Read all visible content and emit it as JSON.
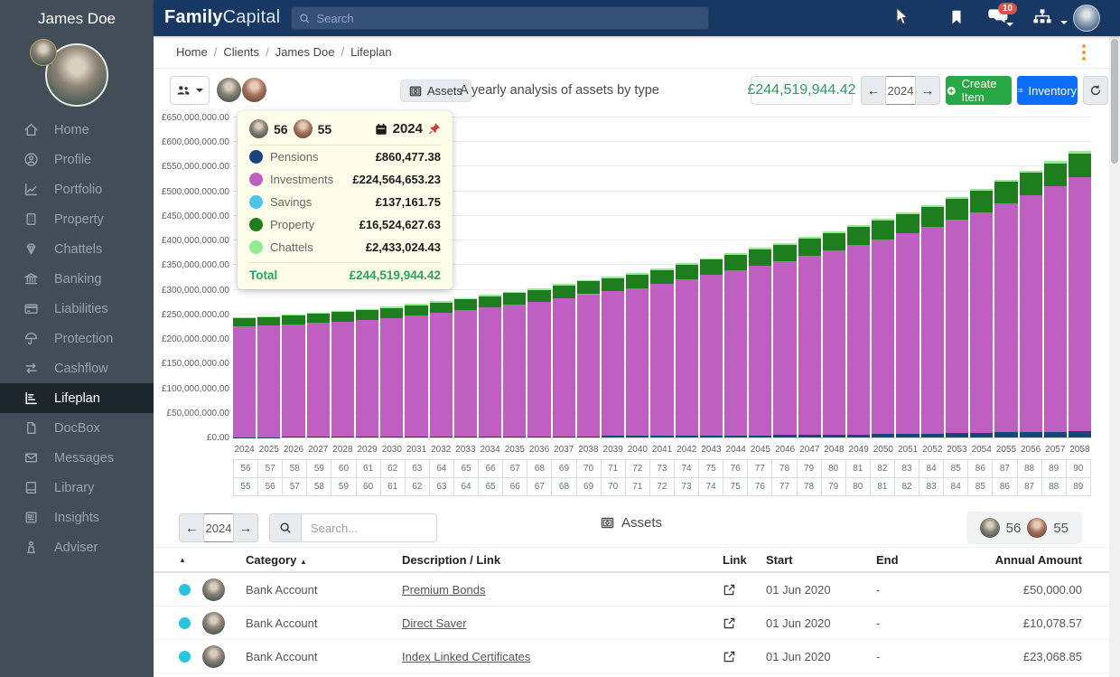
{
  "app": {
    "brand_bold": "Family",
    "brand_rest": "Capital",
    "client_name": "James Doe"
  },
  "navbar": {
    "search_placeholder": "Search",
    "notification_count": "10"
  },
  "breadcrumb": {
    "items": [
      "Home",
      "Clients",
      "James Doe",
      "Lifeplan"
    ]
  },
  "sidebar": {
    "items": [
      {
        "label": "Home"
      },
      {
        "label": "Profile"
      },
      {
        "label": "Portfolio"
      },
      {
        "label": "Property"
      },
      {
        "label": "Chattels"
      },
      {
        "label": "Banking"
      },
      {
        "label": "Liabilities"
      },
      {
        "label": "Protection"
      },
      {
        "label": "Cashflow"
      },
      {
        "label": "Lifeplan",
        "active": true
      },
      {
        "label": "DocBox"
      },
      {
        "label": "Messages"
      },
      {
        "label": "Library"
      },
      {
        "label": "Insights"
      },
      {
        "label": "Adviser"
      }
    ]
  },
  "toolbar": {
    "assets_label": "Assets",
    "subtitle": "A yearly analysis of assets by type",
    "total": "£244,519,944.42",
    "year": "2024",
    "create_label": "Create Item",
    "inventory_label": "Inventory"
  },
  "tooltip": {
    "age_primary": "56",
    "age_secondary": "55",
    "year": "2024",
    "rows": [
      {
        "label": "Pensions",
        "value": "£860,477.38"
      },
      {
        "label": "Investments",
        "value": "£224,564,653.23"
      },
      {
        "label": "Savings",
        "value": "£137,161.75"
      },
      {
        "label": "Property",
        "value": "£16,524,627.63"
      },
      {
        "label": "Chattels",
        "value": "£2,433,024.43"
      }
    ],
    "total_label": "Total",
    "total_value": "£244,519,944.42"
  },
  "chart_data": {
    "type": "bar",
    "stacked": true,
    "title": "A yearly analysis of assets by type",
    "unit": "GBP millions",
    "x": [
      2024,
      2025,
      2026,
      2027,
      2028,
      2029,
      2030,
      2031,
      2032,
      2033,
      2034,
      2035,
      2036,
      2037,
      2038,
      2039,
      2040,
      2041,
      2042,
      2043,
      2044,
      2045,
      2046,
      2047,
      2048,
      2049,
      2050,
      2051,
      2052,
      2053,
      2054,
      2055,
      2056,
      2057,
      2058
    ],
    "ages_primary": [
      56,
      57,
      58,
      59,
      60,
      61,
      62,
      63,
      64,
      65,
      66,
      67,
      68,
      69,
      70,
      71,
      72,
      73,
      74,
      75,
      76,
      77,
      78,
      79,
      80,
      81,
      82,
      83,
      84,
      85,
      86,
      87,
      88,
      89,
      90
    ],
    "ages_secondary": [
      55,
      56,
      57,
      58,
      59,
      60,
      61,
      62,
      63,
      64,
      65,
      66,
      67,
      68,
      69,
      70,
      71,
      72,
      73,
      74,
      75,
      76,
      77,
      78,
      79,
      80,
      81,
      82,
      83,
      84,
      85,
      86,
      87,
      88,
      89
    ],
    "ylim_millions": [
      0,
      650
    ],
    "ytick_step_millions": 50,
    "grid": true,
    "series": [
      {
        "name": "Pensions",
        "color": "#17457c",
        "values": [
          0.86,
          0.93,
          1.01,
          1.09,
          1.18,
          1.28,
          1.39,
          1.5,
          1.63,
          1.76,
          1.91,
          2.07,
          2.24,
          2.42,
          2.62,
          2.84,
          3.08,
          3.33,
          3.61,
          3.91,
          4.23,
          4.58,
          4.96,
          5.38,
          5.82,
          6.31,
          6.83,
          7.4,
          8.01,
          8.68,
          9.4,
          10.18,
          11.02,
          11.94,
          12.93
        ]
      },
      {
        "name": "Investments",
        "color": "#bf5fbf",
        "values": [
          224.56,
          226.4,
          228.72,
          231.52,
          234.3,
          238.05,
          241.76,
          246.45,
          251.1,
          256.74,
          262.32,
          267.87,
          273.4,
          280.88,
          288.31,
          294.21,
          300.04,
          308.85,
          317.59,
          326.79,
          335.94,
          344.51,
          353.03,
          363.47,
          373.86,
          384.66,
          395.39,
          407.53,
          419.61,
          434.06,
          448.44,
          464.7,
          480.87,
          497.9,
          515.81
        ]
      },
      {
        "name": "Savings",
        "color": "#4dc3e8",
        "values": [
          0.14,
          0.14,
          0.14,
          0.15,
          0.15,
          0.15,
          0.15,
          0.16,
          0.16,
          0.16,
          0.17,
          0.17,
          0.17,
          0.18,
          0.18,
          0.18,
          0.19,
          0.19,
          0.2,
          0.2,
          0.2,
          0.21,
          0.21,
          0.22,
          0.22,
          0.23,
          0.23,
          0.24,
          0.24,
          0.25,
          0.25,
          0.26,
          0.26,
          0.27,
          0.27
        ]
      },
      {
        "name": "Property",
        "color": "#1e7e1e",
        "values": [
          16.52,
          17.05,
          17.6,
          18.16,
          18.74,
          19.34,
          19.96,
          20.6,
          21.26,
          21.94,
          22.64,
          23.37,
          24.11,
          24.88,
          25.68,
          26.5,
          27.35,
          28.23,
          29.13,
          30.06,
          31.02,
          32.02,
          33.04,
          34.1,
          35.19,
          36.31,
          37.48,
          38.68,
          39.91,
          41.19,
          42.51,
          43.87,
          45.27,
          46.72,
          48.22
        ]
      },
      {
        "name": "Chattels",
        "color": "#90ee90",
        "values": [
          2.43,
          2.48,
          2.53,
          2.58,
          2.63,
          2.68,
          2.74,
          2.79,
          2.85,
          2.9,
          2.96,
          3.02,
          3.08,
          3.14,
          3.21,
          3.27,
          3.34,
          3.4,
          3.47,
          3.54,
          3.61,
          3.68,
          3.76,
          3.83,
          3.91,
          3.99,
          4.07,
          4.15,
          4.23,
          4.32,
          4.4,
          4.49,
          4.58,
          4.67,
          4.77
        ]
      }
    ]
  },
  "bottom": {
    "year": "2024",
    "search_placeholder": "Search...",
    "title": "Assets",
    "age_primary": "56",
    "age_secondary": "55",
    "table": {
      "headers": {
        "category": "Category",
        "description": "Description / Link",
        "link": "Link",
        "start": "Start",
        "end": "End",
        "amount": "Annual Amount"
      },
      "rows": [
        {
          "category": "Bank Account",
          "description": "Premium Bonds",
          "start": "01 Jun 2020",
          "end": "-",
          "amount": "£50,000.00"
        },
        {
          "category": "Bank Account",
          "description": "Direct Saver",
          "start": "01 Jun 2020",
          "end": "-",
          "amount": "£10,078.57"
        },
        {
          "category": "Bank Account",
          "description": "Index Linked Certificates",
          "start": "01 Jun 2020",
          "end": "-",
          "amount": "£23,068.85"
        }
      ]
    }
  }
}
